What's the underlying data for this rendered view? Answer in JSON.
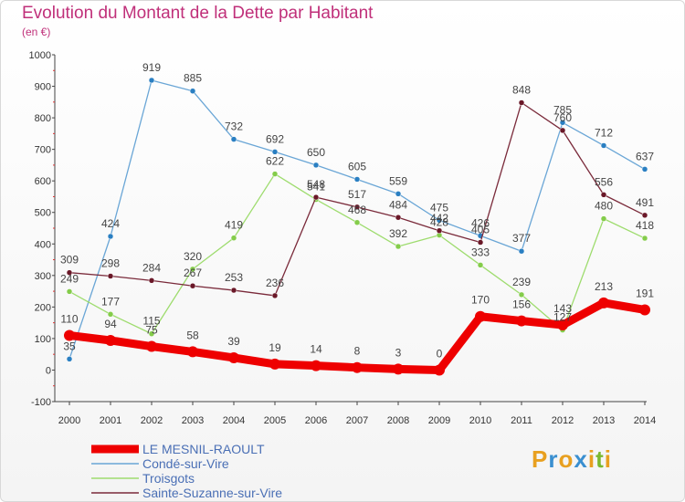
{
  "header": {
    "title": "Evolution du Montant de la Dette par Habitant",
    "subtitle": "(en €)"
  },
  "logo": {
    "text": "Proxiti",
    "letters": [
      "P",
      "r",
      "o",
      "x",
      "i",
      "t",
      "i"
    ],
    "colors": [
      "#e8a020",
      "#3a8fd0",
      "#e8a020",
      "#3a8fd0",
      "#e8a020",
      "#7ab830",
      "#e8a020"
    ]
  },
  "chart_data": {
    "type": "line",
    "title": "Evolution du Montant de la Dette par Habitant",
    "ylabel": "(en €)",
    "xlabel": "",
    "ylim": [
      -100,
      1000
    ],
    "yticks": [
      -100,
      0,
      100,
      200,
      300,
      400,
      500,
      600,
      700,
      800,
      900,
      1000
    ],
    "x": [
      2000,
      2001,
      2002,
      2003,
      2004,
      2005,
      2006,
      2007,
      2008,
      2009,
      2010,
      2011,
      2012,
      2013,
      2014
    ],
    "grid": false,
    "legend_position": "bottom-left",
    "series": [
      {
        "name": "LE MESNIL-RAOULT",
        "color": "#ee0000",
        "width": 9,
        "marker": 12,
        "values": [
          110,
          94,
          75,
          58,
          39,
          19,
          14,
          8,
          3,
          0,
          170,
          156,
          143,
          213,
          191
        ]
      },
      {
        "name": "Condé-sur-Vire",
        "color": "#6aa6d6",
        "width": 1.3,
        "marker": 6,
        "markerColor": "#2a7fc2",
        "values": [
          35,
          424,
          919,
          885,
          732,
          692,
          650,
          605,
          559,
          475,
          426,
          377,
          785,
          712,
          637
        ]
      },
      {
        "name": "Troisgots",
        "color": "#9edc6e",
        "width": 1.3,
        "marker": 6,
        "markerColor": "#84cc4a",
        "values": [
          249,
          177,
          115,
          320,
          419,
          622,
          541,
          468,
          392,
          428,
          333,
          239,
          127,
          480,
          418
        ]
      },
      {
        "name": "Sainte-Suzanne-sur-Vire",
        "color": "#7a2a3a",
        "width": 1.3,
        "marker": 6,
        "markerColor": "#6a1828",
        "values": [
          309,
          298,
          284,
          267,
          253,
          236,
          548,
          517,
          484,
          442,
          405,
          848,
          760,
          556,
          491
        ]
      }
    ]
  }
}
